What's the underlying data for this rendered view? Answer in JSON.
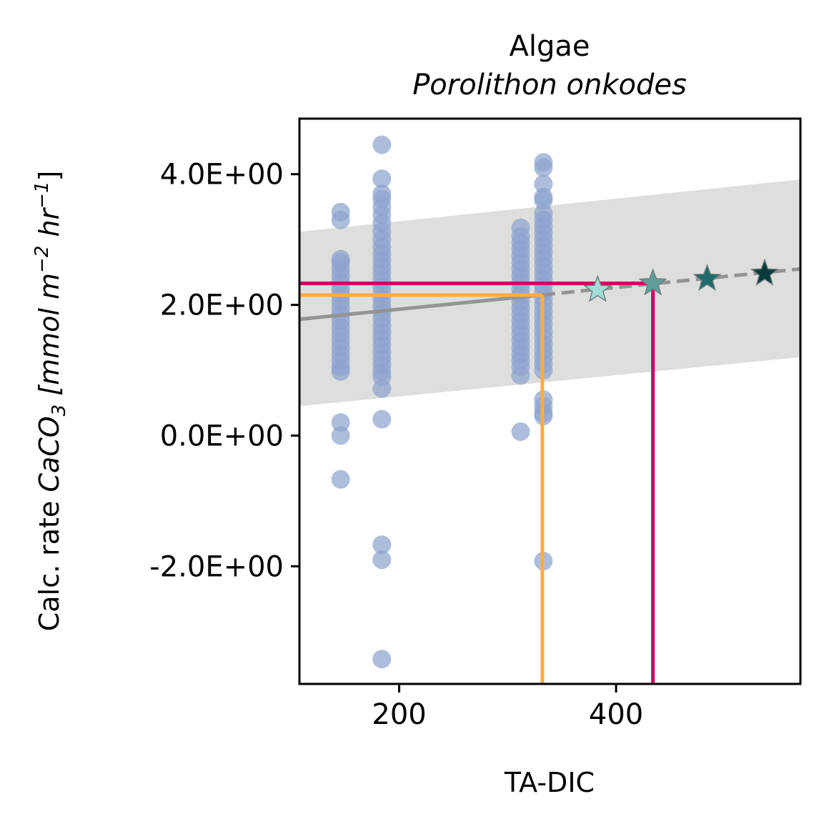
{
  "chart_data": {
    "type": "scatter",
    "title": "Algae",
    "subtitle": "Porolithon onkodes",
    "xlabel": "TA-DIC",
    "ylabel_prefix": "Calc. rate ",
    "ylabel_math": "CaCO",
    "ylabel_math_sub": "3",
    "ylabel_units_open": " [mmol m",
    "ylabel_exp1": "−2",
    "ylabel_units_mid": " hr",
    "ylabel_exp2": "−1",
    "ylabel_units_close": "]",
    "xlim": [
      108,
      570
    ],
    "ylim": [
      -3.8,
      4.85
    ],
    "xticks": [
      {
        "value": 200,
        "label": "200"
      },
      {
        "value": 400,
        "label": "400"
      }
    ],
    "yticks": [
      {
        "value": 4.0,
        "label": "4.0E+00"
      },
      {
        "value": 2.0,
        "label": "2.0E+00"
      },
      {
        "value": 0.0,
        "label": "0.0E+00"
      },
      {
        "value": -2.0,
        "label": "-2.0E+00"
      }
    ],
    "grid": false,
    "colors": {
      "points": "#8ea3cf",
      "confidence_band": "#dededc",
      "fit_line": "#949494",
      "orange_marker": "#fdab4a",
      "magenta_marker": "#cc0066",
      "stars": [
        "#a3ddd6",
        "#5f9e9a",
        "#1f6b6b",
        "#0c3b3b"
      ]
    },
    "fit": {
      "x": [
        108,
        570
      ],
      "y": [
        1.78,
        2.55
      ],
      "solid_until_x": 332
    },
    "confidence_band": {
      "x": [
        108,
        570
      ],
      "upper": [
        3.12,
        3.92
      ],
      "lower": [
        0.45,
        1.2
      ]
    },
    "reference_lines": [
      {
        "name": "orange",
        "x": 332,
        "y": 2.15
      },
      {
        "name": "magenta",
        "x": 434,
        "y": 2.33
      }
    ],
    "stars": [
      {
        "x": 383,
        "y": 2.23
      },
      {
        "x": 434,
        "y": 2.33
      },
      {
        "x": 484,
        "y": 2.4
      },
      {
        "x": 537,
        "y": 2.48
      }
    ],
    "scatter_groups": [
      {
        "x": 146,
        "y": [
          3.42,
          3.3,
          2.7,
          2.65,
          2.55,
          2.45,
          2.35,
          2.25,
          2.15,
          2.05,
          1.95,
          1.85,
          1.75,
          1.65,
          1.55,
          1.45,
          1.35,
          1.25,
          1.15,
          1.05,
          0.98,
          0.2,
          0.0,
          -0.67
        ]
      },
      {
        "x": 184,
        "y": [
          4.45,
          3.93,
          3.7,
          3.62,
          3.5,
          3.38,
          3.25,
          3.12,
          3.0,
          2.88,
          2.78,
          2.68,
          2.58,
          2.48,
          2.38,
          2.28,
          2.18,
          2.08,
          1.98,
          1.88,
          1.78,
          1.68,
          1.58,
          1.48,
          1.38,
          1.28,
          1.18,
          1.08,
          0.98,
          0.9,
          0.72,
          0.25,
          -1.67,
          -1.9,
          -3.42
        ]
      },
      {
        "x": 312,
        "y": [
          3.18,
          3.05,
          2.95,
          2.85,
          2.75,
          2.65,
          2.55,
          2.45,
          2.35,
          2.25,
          2.15,
          2.05,
          1.95,
          1.85,
          1.75,
          1.65,
          1.55,
          1.45,
          1.35,
          1.25,
          1.15,
          1.05,
          0.92,
          0.06
        ]
      },
      {
        "x": 333,
        "y": [
          4.18,
          4.1,
          3.85,
          3.65,
          3.6,
          3.4,
          3.3,
          3.2,
          3.1,
          3.0,
          2.9,
          2.8,
          2.7,
          2.6,
          2.5,
          2.4,
          2.3,
          2.2,
          2.1,
          2.0,
          1.9,
          1.8,
          1.7,
          1.6,
          1.5,
          1.4,
          1.3,
          1.2,
          1.1,
          1.0,
          0.55,
          0.45,
          0.35,
          0.3,
          -1.92
        ]
      }
    ]
  }
}
